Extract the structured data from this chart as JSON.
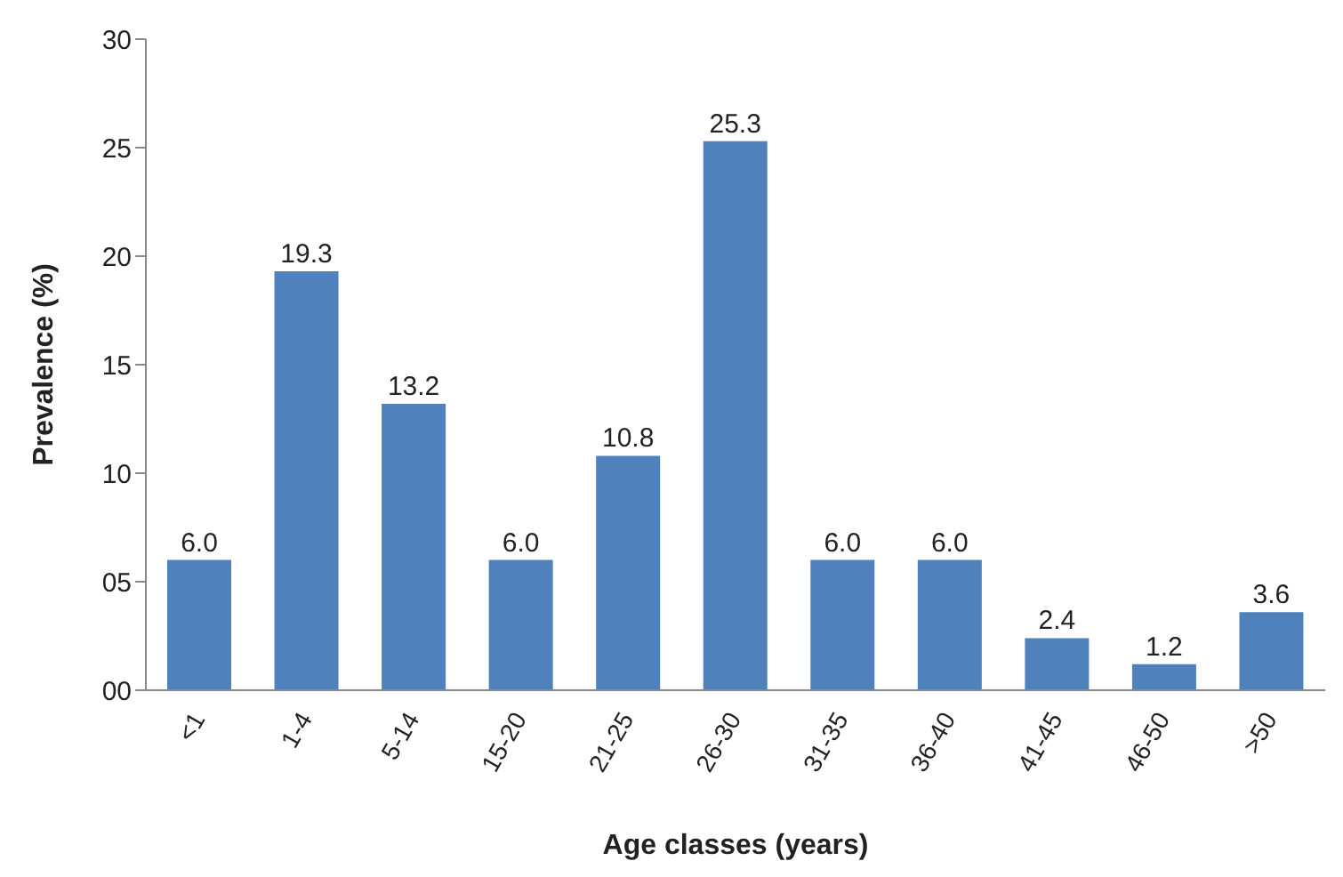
{
  "chart_data": {
    "type": "bar",
    "xlabel": "Age classes (years)",
    "ylabel": "Prevalence (%)",
    "categories": [
      "<1",
      "1-4",
      "5-14",
      "15-20",
      "21-25",
      "26-30",
      "31-35",
      "36-40",
      "41-45",
      "46-50",
      ">50"
    ],
    "values": [
      6.0,
      19.3,
      13.2,
      6.0,
      10.8,
      25.3,
      6.0,
      6.0,
      2.4,
      1.2,
      3.6
    ],
    "value_labels": [
      "6.0",
      "19.3",
      "13.2",
      "6.0",
      "10.8",
      "25.3",
      "6.0",
      "6.0",
      "2.4",
      "1.2",
      "3.6"
    ],
    "color": "#4f81bd",
    "ylim": [
      0,
      30
    ],
    "yticks": [
      {
        "value": 0,
        "label": "00"
      },
      {
        "value": 5,
        "label": "05"
      },
      10,
      15,
      20,
      25,
      30
    ],
    "grid": false,
    "legend": false
  }
}
